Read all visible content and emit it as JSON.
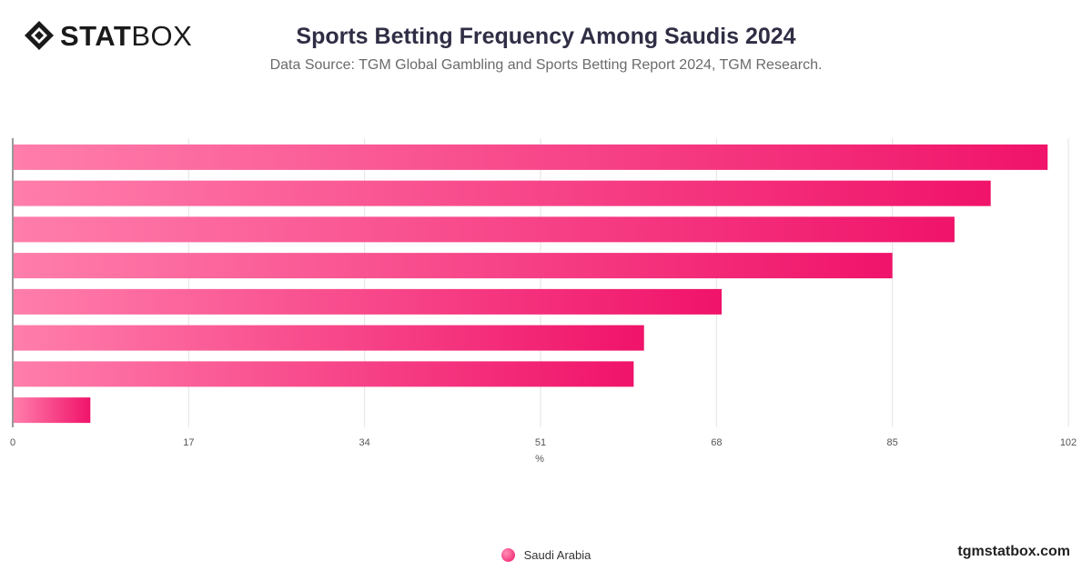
{
  "brand": {
    "logo_bold": "STAT",
    "logo_light": "BOX"
  },
  "header": {
    "title": "Sports Betting Frequency Among Saudis 2024",
    "subtitle": "Data Source: TGM Global Gambling and Sports Betting Report 2024, TGM Research."
  },
  "footer": {
    "site": "tgmstatbox.com"
  },
  "legend": {
    "items": [
      {
        "label": "Saudi Arabia",
        "color": "#f0176a"
      }
    ]
  },
  "chart_data": {
    "type": "bar",
    "orientation": "horizontal",
    "categories": [
      "",
      "",
      "",
      "",
      "",
      "",
      "",
      ""
    ],
    "series": [
      {
        "name": "Saudi Arabia",
        "values": [
          100,
          94.5,
          91,
          85,
          68.5,
          61,
          60,
          7.5
        ]
      }
    ],
    "xlabel": "%",
    "xlim": [
      0,
      102
    ],
    "xticks": [
      0,
      17,
      34,
      51,
      68,
      85,
      102
    ],
    "grid": true,
    "legend_position": "bottom-center",
    "colors": {
      "bar_start": "#ff7eab",
      "bar_end": "#f0136a"
    }
  }
}
